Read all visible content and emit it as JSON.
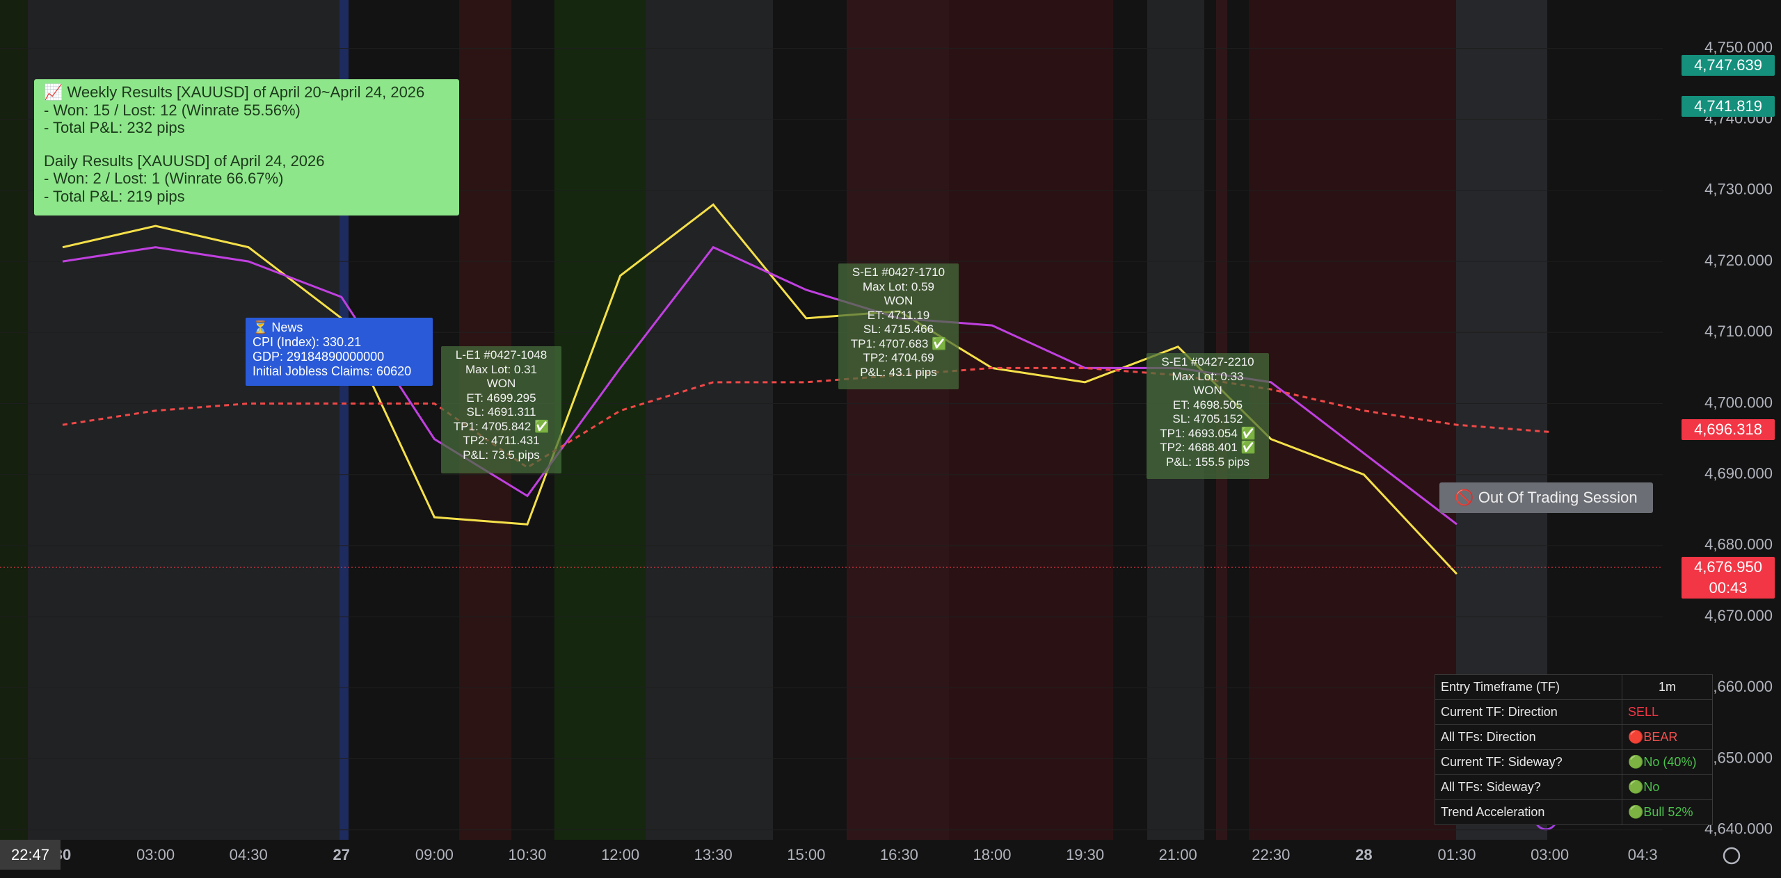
{
  "chart_data": {
    "type": "line",
    "categories": [
      "30",
      "03:00",
      "04:30",
      "27",
      "09:00",
      "10:30",
      "12:00",
      "13:30",
      "15:00",
      "16:30",
      "18:00",
      "19:30",
      "21:00",
      "22:30",
      "28",
      "01:30",
      "03:00",
      "04:3"
    ],
    "series": [
      {
        "color": "#f5e04a",
        "values": [
          4722,
          4725,
          4722,
          4712,
          4684,
          4683,
          4718,
          4728,
          4712,
          4713,
          4705,
          4703,
          4708,
          4695,
          4690,
          4676,
          null,
          null
        ]
      },
      {
        "color": "#c040e0",
        "values": [
          4720,
          4722,
          4720,
          4715,
          4695,
          4687,
          4705,
          4722,
          4716,
          4712,
          4711,
          4705,
          4705,
          4703,
          4693,
          4683,
          null,
          null
        ]
      },
      {
        "color": "#f04848",
        "dashed": true,
        "values": [
          4697,
          4699,
          4700,
          4700,
          4700,
          4691,
          4699,
          4703,
          4703,
          4704,
          4705,
          4705,
          4704,
          4702,
          4699,
          4697,
          4696,
          null
        ]
      }
    ],
    "ylim": [
      4638.6,
      4756.8
    ],
    "yticks": [
      {
        "value": 4750,
        "label": "4,750.000"
      },
      {
        "value": 4740,
        "label": "4,740.000"
      },
      {
        "value": 4730,
        "label": "4,730.000"
      },
      {
        "value": 4720,
        "label": "4,720.000"
      },
      {
        "value": 4710,
        "label": "4,710.000"
      },
      {
        "value": 4700,
        "label": "4,700.000"
      },
      {
        "value": 4690,
        "label": "4,690.000"
      },
      {
        "value": 4680,
        "label": "4,680.000"
      },
      {
        "value": 4670,
        "label": "4,670.000"
      },
      {
        "value": 4660,
        "label": "4,660.000"
      },
      {
        "value": 4650,
        "label": "4,650.000"
      },
      {
        "value": 4640,
        "label": "4,640.000"
      }
    ]
  },
  "price_badges": [
    {
      "value": 4747.639,
      "label": "4,747.639",
      "color": "#14907c"
    },
    {
      "value": 4741.819,
      "label": "4,741.819",
      "color": "#14907c"
    },
    {
      "value": 4696.318,
      "label": "4,696.318",
      "color": "#f23645"
    },
    {
      "value": 4676.95,
      "label": "4,676.950",
      "color": "#f23645",
      "countdown": "00:43"
    }
  ],
  "time_badge": "22:47",
  "annotations": {
    "results": [
      "📈 Weekly Results [XAUUSD] of April 20~April 24, 2026",
      "- Won: 15 / Lost: 12 (Winrate 55.56%)",
      "- Total P&L: 232 pips",
      "",
      "Daily Results [XAUUSD] of April 24, 2026",
      "- Won: 2 / Lost: 1 (Winrate 66.67%)",
      "- Total P&L: 219 pips"
    ],
    "news": [
      "⏳ News",
      "CPI (Index): 330.21",
      "GDP: 29184890000000",
      "Initial Jobless Claims: 60620"
    ],
    "trade_1": [
      "L-E1 #0427-1048",
      "Max Lot: 0.31",
      "WON",
      "ET: 4699.295",
      "SL: 4691.311",
      "TP1: 4705.842 ✅",
      "TP2: 4711.431",
      "P&L: 73.5 pips"
    ],
    "trade_2": [
      "S-E1 #0427-1710",
      "Max Lot: 0.59",
      "WON",
      "ET: 4711.19",
      "SL: 4715.466",
      "TP1: 4707.683 ✅",
      "TP2: 4704.69",
      "P&L: 43.1 pips"
    ],
    "trade_3": [
      "S-E1 #0427-2210",
      "Max Lot: 0.33",
      "WON",
      "ET: 4698.505",
      "SL: 4705.152",
      "TP1: 4693.054 ✅",
      "TP2: 4688.401 ✅",
      "P&L: 155.5 pips"
    ],
    "session": "🚫 Out Of Trading Session"
  },
  "status_table": {
    "rows": [
      [
        "Entry Timeframe (TF)",
        "1m"
      ],
      [
        "Current TF: Direction",
        "SELL"
      ],
      [
        "All TFs: Direction",
        "🔴BEAR"
      ],
      [
        "Current TF: Sideway?",
        "🟢No (40%)"
      ],
      [
        "All TFs: Sideway?",
        "🟢No"
      ],
      [
        "Trend Acceleration",
        "🟢Bull 52%"
      ]
    ]
  }
}
